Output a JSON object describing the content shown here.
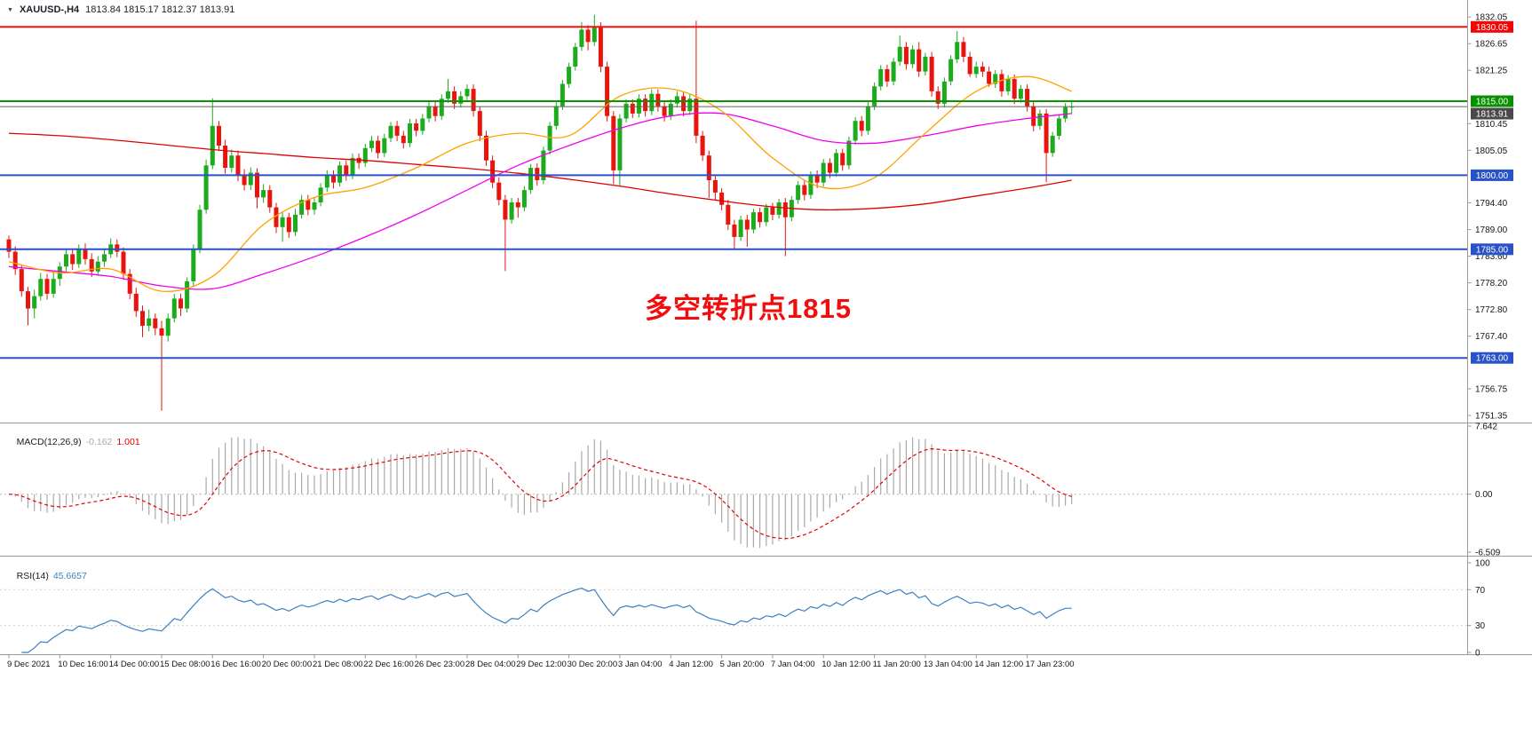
{
  "header": {
    "symbol": "XAUUSD-,H4",
    "ohlc": "1813.84 1815.17 1812.37 1813.91"
  },
  "annotation": {
    "text": "多空转折点1815",
    "color": "#f20d0d"
  },
  "colors": {
    "axis_text": "#141414",
    "separator": "#9a9a9a",
    "background": "#ffffff"
  },
  "price_axis": {
    "ticks": [
      "1832.05",
      "1826.65",
      "1821.25",
      "1810.45",
      "1805.05",
      "1794.40",
      "1789.00",
      "1783.60",
      "1778.20",
      "1772.80",
      "1767.40",
      "1756.75",
      "1751.35"
    ]
  },
  "indicators": {
    "macd": {
      "label": "MACD(12,26,9)",
      "value_main": "-0.162",
      "value_signal": "1.001",
      "fast": 12,
      "slow": 26,
      "signal": 9,
      "axis": [
        "7.642",
        "0.00",
        "-6.509"
      ],
      "range": [
        7.642,
        -6.509
      ],
      "hist_color": "#a9a9a9",
      "signal_color": "#e00000"
    },
    "rsi": {
      "label": "RSI(14)",
      "value": "45.6657",
      "period": 14,
      "axis": [
        "100",
        "70",
        "30",
        "0"
      ],
      "levels": [
        70,
        30
      ],
      "line_color": "#3e7fc1"
    }
  },
  "chart_data": {
    "type": "candlestick",
    "symbol": "XAUUSD-",
    "timeframe": "H4",
    "price_range": [
      1749.9,
      1835.5
    ],
    "bull_color": "#1cab1c",
    "bear_color": "#e8140e",
    "time_axis": [
      "9 Dec 2021",
      "10 Dec 16:00",
      "14 Dec 00:00",
      "15 Dec 08:00",
      "16 Dec 16:00",
      "20 Dec 00:00",
      "21 Dec 08:00",
      "22 Dec 16:00",
      "26 Dec 23:00",
      "28 Dec 04:00",
      "29 Dec 12:00",
      "30 Dec 20:00",
      "3 Jan 04:00",
      "4 Jan 12:00",
      "5 Jan 20:00",
      "7 Jan 04:00",
      "10 Jan 12:00",
      "11 Jan 20:00",
      "13 Jan 04:00",
      "14 Jan 12:00",
      "17 Jan 23:00"
    ],
    "hlines": [
      {
        "price": 1830.05,
        "label": "1830.05",
        "color": "#fe0d0d",
        "badge": "#f40606",
        "width": 2
      },
      {
        "price": 1815.0,
        "label": "1815.00",
        "color": "#0a9600",
        "badge": "#089000",
        "width": 2
      },
      {
        "price": 1813.91,
        "label": "1813.91",
        "color": "#5f5f5f",
        "badge": "#4a4a4a",
        "width": 1
      },
      {
        "price": 1800.0,
        "label": "1800.00",
        "color": "#2a52c8",
        "badge": "#2a52c8",
        "width": 2
      },
      {
        "price": 1785.0,
        "label": "1785.00",
        "color": "#2a52c8",
        "badge": "#2a52c8",
        "width": 2
      },
      {
        "price": 1763.0,
        "label": "1763.00",
        "color": "#2a52c8",
        "badge": "#2a52c8",
        "width": 2
      }
    ],
    "anchor_indices": [
      0,
      8,
      16,
      24,
      32,
      40,
      48,
      56,
      64,
      72,
      80,
      88,
      96,
      104,
      112,
      120,
      128,
      136,
      144,
      152,
      160,
      167
    ],
    "overlays": [
      {
        "name": "ma-red-line",
        "color": "#e00000",
        "anchors": [
          1808.5,
          1808.0,
          1807.2,
          1806.2,
          1805.2,
          1804.4,
          1803.6,
          1803.0,
          1802.2,
          1801.4,
          1800.4,
          1799.2,
          1797.8,
          1796.2,
          1794.8,
          1793.6,
          1793.0,
          1793.3,
          1794.2,
          1795.8,
          1797.4,
          1799.0
        ]
      },
      {
        "name": "ma-magenta-line",
        "color": "#f000f0",
        "anchors": [
          1781.5,
          1780.5,
          1779.5,
          1777.6,
          1777.0,
          1780.0,
          1783.5,
          1787.5,
          1792.0,
          1797.0,
          1802.0,
          1806.0,
          1809.5,
          1812.0,
          1812.5,
          1810.0,
          1807.0,
          1806.5,
          1808.0,
          1810.0,
          1811.5,
          1812.5
        ]
      },
      {
        "name": "ma-orange-line",
        "color": "#ffa200",
        "anchors": [
          1782.5,
          1780.2,
          1781.0,
          1776.5,
          1779.5,
          1790.0,
          1795.5,
          1797.5,
          1801.5,
          1806.5,
          1808.5,
          1808.0,
          1816.0,
          1817.5,
          1813.0,
          1803.5,
          1797.5,
          1799.5,
          1808.5,
          1817.0,
          1820.0,
          1817.0
        ]
      }
    ],
    "candles": [
      [
        1787.0,
        1787.8,
        1783.2,
        1784.5
      ],
      [
        1784.5,
        1785.6,
        1779.8,
        1781.0
      ],
      [
        1781.0,
        1781.8,
        1775.4,
        1776.5
      ],
      [
        1776.5,
        1777.4,
        1769.6,
        1773.0
      ],
      [
        1773.0,
        1776.8,
        1771.0,
        1775.5
      ],
      [
        1775.5,
        1780.2,
        1774.6,
        1779.0
      ],
      [
        1779.0,
        1780.0,
        1774.8,
        1776.0
      ],
      [
        1776.0,
        1780.6,
        1775.2,
        1779.0
      ],
      [
        1779.0,
        1782.4,
        1777.6,
        1781.5
      ],
      [
        1781.5,
        1785.0,
        1780.6,
        1784.0
      ],
      [
        1784.0,
        1785.2,
        1780.8,
        1782.0
      ],
      [
        1782.0,
        1786.0,
        1781.2,
        1785.0
      ],
      [
        1785.0,
        1786.2,
        1781.9,
        1783.0
      ],
      [
        1783.0,
        1784.2,
        1779.4,
        1780.5
      ],
      [
        1780.5,
        1783.6,
        1779.6,
        1782.5
      ],
      [
        1782.5,
        1785.0,
        1781.4,
        1784.0
      ],
      [
        1784.0,
        1787.2,
        1783.2,
        1786.0
      ],
      [
        1786.0,
        1787.0,
        1783.4,
        1784.5
      ],
      [
        1784.5,
        1785.4,
        1778.8,
        1780.0
      ],
      [
        1780.0,
        1781.0,
        1774.9,
        1776.0
      ],
      [
        1776.0,
        1777.2,
        1771.3,
        1772.5
      ],
      [
        1772.5,
        1773.6,
        1767.2,
        1769.5
      ],
      [
        1769.5,
        1772.8,
        1768.4,
        1771.0
      ],
      [
        1771.0,
        1772.0,
        1767.6,
        1769.0
      ],
      [
        1769.0,
        1770.5,
        1752.3,
        1767.5
      ],
      [
        1767.5,
        1772.0,
        1766.3,
        1771.0
      ],
      [
        1771.0,
        1776.0,
        1770.2,
        1775.0
      ],
      [
        1775.0,
        1776.0,
        1771.5,
        1773.0
      ],
      [
        1773.0,
        1779.3,
        1772.2,
        1778.5
      ],
      [
        1778.5,
        1786.0,
        1777.6,
        1785.0
      ],
      [
        1785.0,
        1794.0,
        1784.2,
        1793.0
      ],
      [
        1793.0,
        1803.2,
        1792.2,
        1802.0
      ],
      [
        1802.0,
        1815.6,
        1801.2,
        1810.0
      ],
      [
        1810.0,
        1811.0,
        1804.9,
        1806.0
      ],
      [
        1806.0,
        1807.2,
        1800.3,
        1801.5
      ],
      [
        1801.5,
        1805.2,
        1800.5,
        1804.0
      ],
      [
        1804.0,
        1805.0,
        1798.8,
        1800.0
      ],
      [
        1800.0,
        1801.2,
        1796.9,
        1798.0
      ],
      [
        1798.0,
        1801.6,
        1797.0,
        1800.5
      ],
      [
        1800.5,
        1801.4,
        1793.3,
        1795.5
      ],
      [
        1795.5,
        1798.2,
        1794.4,
        1797.0
      ],
      [
        1797.0,
        1798.0,
        1792.4,
        1793.5
      ],
      [
        1793.5,
        1794.4,
        1788.3,
        1789.5
      ],
      [
        1789.5,
        1792.6,
        1786.5,
        1791.5
      ],
      [
        1791.5,
        1792.4,
        1787.3,
        1788.5
      ],
      [
        1788.5,
        1793.2,
        1787.7,
        1792.0
      ],
      [
        1792.0,
        1796.0,
        1791.2,
        1795.0
      ],
      [
        1795.0,
        1796.0,
        1791.9,
        1793.0
      ],
      [
        1793.0,
        1795.6,
        1792.0,
        1794.5
      ],
      [
        1794.5,
        1798.4,
        1793.7,
        1797.5
      ],
      [
        1797.5,
        1801.0,
        1796.6,
        1800.0
      ],
      [
        1800.0,
        1801.0,
        1797.3,
        1798.5
      ],
      [
        1798.5,
        1802.8,
        1797.7,
        1802.0
      ],
      [
        1802.0,
        1803.0,
        1798.9,
        1800.0
      ],
      [
        1800.0,
        1804.4,
        1799.2,
        1803.5
      ],
      [
        1803.5,
        1804.4,
        1801.3,
        1802.5
      ],
      [
        1802.5,
        1806.4,
        1801.7,
        1805.5
      ],
      [
        1805.5,
        1808.0,
        1804.7,
        1807.0
      ],
      [
        1807.0,
        1808.0,
        1803.4,
        1804.5
      ],
      [
        1804.5,
        1808.4,
        1803.7,
        1807.5
      ],
      [
        1807.5,
        1810.8,
        1806.7,
        1810.0
      ],
      [
        1810.0,
        1811.0,
        1806.9,
        1808.0
      ],
      [
        1808.0,
        1809.0,
        1805.4,
        1806.5
      ],
      [
        1806.5,
        1811.4,
        1805.7,
        1810.5
      ],
      [
        1810.5,
        1811.4,
        1807.9,
        1809.0
      ],
      [
        1809.0,
        1812.4,
        1808.2,
        1811.5
      ],
      [
        1811.5,
        1815.0,
        1810.7,
        1814.0
      ],
      [
        1814.0,
        1815.0,
        1810.9,
        1812.0
      ],
      [
        1812.0,
        1816.4,
        1811.2,
        1815.5
      ],
      [
        1815.5,
        1819.5,
        1814.7,
        1817.0
      ],
      [
        1817.0,
        1818.0,
        1813.4,
        1814.5
      ],
      [
        1814.5,
        1817.0,
        1813.7,
        1816.0
      ],
      [
        1816.0,
        1818.4,
        1815.2,
        1817.5
      ],
      [
        1817.5,
        1818.4,
        1811.9,
        1813.0
      ],
      [
        1813.0,
        1814.0,
        1806.9,
        1808.0
      ],
      [
        1808.0,
        1809.0,
        1801.9,
        1803.0
      ],
      [
        1803.0,
        1804.0,
        1797.4,
        1798.5
      ],
      [
        1798.5,
        1799.6,
        1793.9,
        1795.0
      ],
      [
        1795.0,
        1796.0,
        1780.6,
        1791.0
      ],
      [
        1791.0,
        1795.4,
        1790.2,
        1794.5
      ],
      [
        1794.5,
        1795.4,
        1791.4,
        1793.5
      ],
      [
        1793.5,
        1797.8,
        1792.7,
        1797.0
      ],
      [
        1797.0,
        1802.3,
        1796.2,
        1801.5
      ],
      [
        1801.5,
        1802.4,
        1797.9,
        1799.0
      ],
      [
        1799.0,
        1805.8,
        1798.2,
        1805.0
      ],
      [
        1805.0,
        1810.8,
        1804.2,
        1810.0
      ],
      [
        1810.0,
        1814.8,
        1809.2,
        1814.0
      ],
      [
        1814.0,
        1819.3,
        1813.2,
        1818.5
      ],
      [
        1818.5,
        1822.8,
        1817.7,
        1822.0
      ],
      [
        1822.0,
        1826.8,
        1821.2,
        1826.0
      ],
      [
        1826.0,
        1831.0,
        1825.2,
        1829.5
      ],
      [
        1829.5,
        1830.4,
        1825.3,
        1827.0
      ],
      [
        1827.0,
        1832.5,
        1826.2,
        1830.0
      ],
      [
        1830.0,
        1831.0,
        1820.9,
        1822.0
      ],
      [
        1822.0,
        1823.0,
        1810.9,
        1812.0
      ],
      [
        1812.0,
        1813.0,
        1798.2,
        1801.0
      ],
      [
        1801.0,
        1812.4,
        1797.8,
        1811.5
      ],
      [
        1811.5,
        1815.4,
        1810.7,
        1814.5
      ],
      [
        1814.5,
        1815.4,
        1811.6,
        1812.5
      ],
      [
        1812.5,
        1816.4,
        1811.7,
        1815.5
      ],
      [
        1815.5,
        1816.4,
        1811.9,
        1813.0
      ],
      [
        1813.0,
        1817.4,
        1812.2,
        1816.5
      ],
      [
        1816.5,
        1817.4,
        1812.9,
        1814.0
      ],
      [
        1814.0,
        1815.0,
        1810.9,
        1812.0
      ],
      [
        1812.0,
        1815.4,
        1811.2,
        1814.5
      ],
      [
        1814.5,
        1817.0,
        1813.7,
        1816.0
      ],
      [
        1816.0,
        1817.0,
        1811.9,
        1813.0
      ],
      [
        1813.0,
        1816.4,
        1812.2,
        1815.5
      ],
      [
        1815.5,
        1831.3,
        1806.5,
        1808.0
      ],
      [
        1808.0,
        1809.0,
        1802.9,
        1804.0
      ],
      [
        1804.0,
        1805.0,
        1795.4,
        1799.0
      ],
      [
        1799.0,
        1800.0,
        1794.9,
        1796.5
      ],
      [
        1796.5,
        1797.4,
        1792.9,
        1794.0
      ],
      [
        1794.0,
        1795.0,
        1788.9,
        1790.0
      ],
      [
        1790.0,
        1791.0,
        1785.0,
        1787.5
      ],
      [
        1787.5,
        1791.8,
        1786.7,
        1791.0
      ],
      [
        1791.0,
        1792.0,
        1785.5,
        1789.0
      ],
      [
        1789.0,
        1793.2,
        1788.2,
        1792.5
      ],
      [
        1792.5,
        1793.4,
        1789.4,
        1790.5
      ],
      [
        1790.5,
        1794.2,
        1789.7,
        1793.5
      ],
      [
        1793.5,
        1794.4,
        1790.9,
        1792.0
      ],
      [
        1792.0,
        1795.2,
        1791.2,
        1794.5
      ],
      [
        1794.5,
        1795.4,
        1783.6,
        1791.5
      ],
      [
        1791.5,
        1795.8,
        1790.7,
        1795.0
      ],
      [
        1795.0,
        1798.8,
        1794.2,
        1798.0
      ],
      [
        1798.0,
        1799.0,
        1794.9,
        1796.0
      ],
      [
        1796.0,
        1800.8,
        1795.2,
        1800.0
      ],
      [
        1800.0,
        1801.0,
        1797.4,
        1798.5
      ],
      [
        1798.5,
        1803.3,
        1797.7,
        1802.5
      ],
      [
        1802.5,
        1803.4,
        1799.4,
        1800.5
      ],
      [
        1800.5,
        1805.3,
        1799.7,
        1804.5
      ],
      [
        1804.5,
        1805.4,
        1800.9,
        1802.0
      ],
      [
        1802.0,
        1807.8,
        1801.2,
        1807.0
      ],
      [
        1807.0,
        1811.8,
        1806.2,
        1811.0
      ],
      [
        1811.0,
        1812.0,
        1807.9,
        1809.0
      ],
      [
        1809.0,
        1814.8,
        1808.2,
        1814.0
      ],
      [
        1814.0,
        1818.8,
        1813.2,
        1818.0
      ],
      [
        1818.0,
        1822.3,
        1817.2,
        1821.5
      ],
      [
        1821.5,
        1822.4,
        1817.9,
        1819.0
      ],
      [
        1819.0,
        1823.8,
        1818.2,
        1823.0
      ],
      [
        1823.0,
        1828.3,
        1822.2,
        1826.0
      ],
      [
        1826.0,
        1827.0,
        1821.4,
        1822.5
      ],
      [
        1822.5,
        1826.3,
        1821.7,
        1825.5
      ],
      [
        1825.5,
        1827.0,
        1819.9,
        1821.0
      ],
      [
        1821.0,
        1824.8,
        1820.2,
        1824.0
      ],
      [
        1824.0,
        1825.0,
        1815.9,
        1817.0
      ],
      [
        1817.0,
        1818.0,
        1813.4,
        1814.5
      ],
      [
        1814.5,
        1819.8,
        1813.7,
        1819.0
      ],
      [
        1819.0,
        1824.3,
        1818.2,
        1823.5
      ],
      [
        1823.5,
        1829.2,
        1822.7,
        1827.0
      ],
      [
        1827.0,
        1828.0,
        1822.9,
        1824.0
      ],
      [
        1824.0,
        1825.0,
        1819.9,
        1820.5
      ],
      [
        1820.5,
        1823.0,
        1819.7,
        1822.0
      ],
      [
        1822.0,
        1823.0,
        1819.9,
        1821.0
      ],
      [
        1821.0,
        1822.0,
        1817.9,
        1818.5
      ],
      [
        1818.5,
        1821.3,
        1817.7,
        1820.5
      ],
      [
        1820.5,
        1821.4,
        1815.9,
        1817.0
      ],
      [
        1817.0,
        1820.3,
        1816.2,
        1819.5
      ],
      [
        1819.5,
        1820.4,
        1814.4,
        1815.5
      ],
      [
        1815.5,
        1818.3,
        1814.7,
        1817.5
      ],
      [
        1817.5,
        1818.4,
        1812.9,
        1814.0
      ],
      [
        1814.0,
        1815.0,
        1808.9,
        1810.0
      ],
      [
        1810.0,
        1813.3,
        1809.2,
        1812.5
      ],
      [
        1812.5,
        1813.4,
        1798.6,
        1804.5
      ],
      [
        1804.5,
        1808.8,
        1803.7,
        1808.0
      ],
      [
        1808.0,
        1812.3,
        1807.2,
        1811.5
      ],
      [
        1811.5,
        1814.6,
        1810.7,
        1813.8
      ],
      [
        1813.84,
        1815.17,
        1812.37,
        1813.91
      ]
    ]
  }
}
